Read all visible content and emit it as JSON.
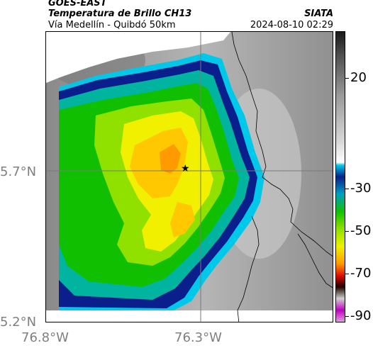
{
  "header": {
    "satellite": "GOES-EAST",
    "product": "Temperatura de Brillo CH13",
    "region": "Vía Medellín - Quibdó 50km",
    "org": "SIATA",
    "timestamp": "2024-08-10 02:29"
  },
  "map": {
    "lat_labels": [
      "5.7°N",
      "5.2°N"
    ],
    "lon_labels": [
      "76.8°W",
      "76.3°W"
    ],
    "marker_icon": "star-icon",
    "background_color": "#a0a0a0"
  },
  "colorbar": {
    "tick_labels": [
      "20",
      "-30",
      "-50",
      "-70",
      "-90"
    ],
    "colors": {
      "top": "#1a1a1a",
      "gray": "#9a9a9a",
      "white": "#ffffff",
      "cyan": "#00c8e8",
      "blue": "#0a1e8c",
      "green": "#10c000",
      "lime": "#90e000",
      "yellow": "#f0f000",
      "orange": "#ff9a00",
      "red": "#e01000",
      "dark": "#200000",
      "magenta": "#c000c0"
    }
  }
}
